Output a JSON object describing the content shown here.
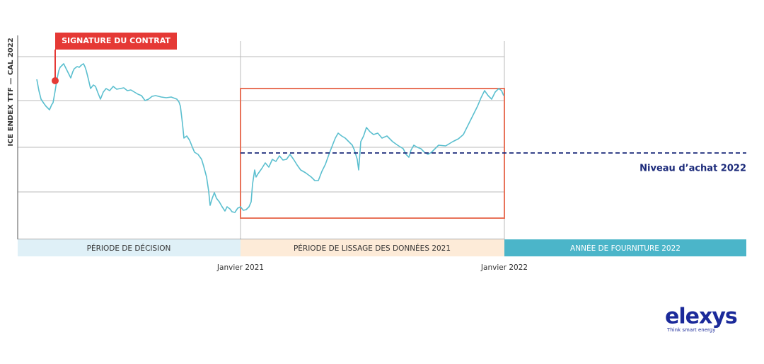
{
  "annotation": {
    "label": "SIGNATURE DU CONTRAT"
  },
  "y_axis": {
    "label": "ICE ENDEX TTF — CAL 2022"
  },
  "periods": [
    "PÉRIODE DE DÉCISION",
    "PÉRIODE DE LISSAGE DES DONNÉES 2021",
    "ANNÉE DE FOURNITURE 2022"
  ],
  "x_labels": [
    "Janvier 2021",
    "Janvier 2022"
  ],
  "reference_line": {
    "label": "Niveau d’achat 2022"
  },
  "logo": {
    "name": "elexys",
    "tagline": "Think smart energy"
  }
}
